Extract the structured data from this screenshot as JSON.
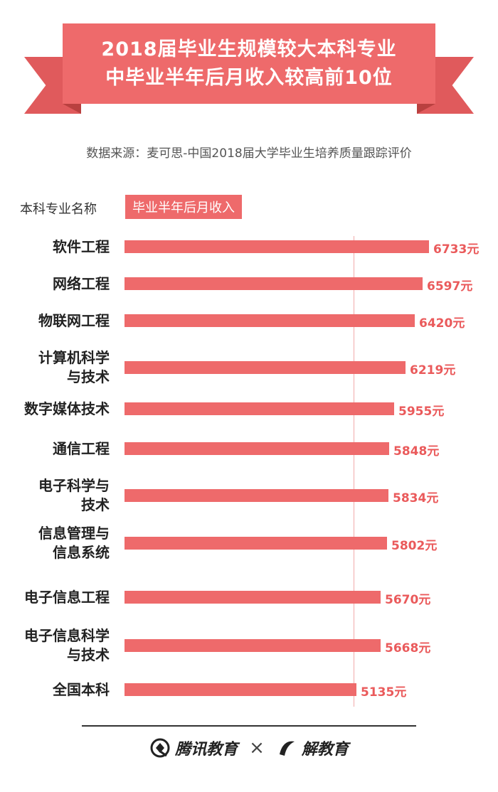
{
  "title": {
    "line1": "2018届毕业生规模较大本科专业",
    "line2": "中毕业半年后月收入较高前10位"
  },
  "source": "数据来源：麦可思-中国2018届大学毕业生培养质量跟踪评价",
  "header": {
    "major_col": "本科专业名称",
    "income_col": "毕业半年后月收入"
  },
  "footer": {
    "brand1": "腾讯教育",
    "separator": "×",
    "brand2": "解教育"
  },
  "colors": {
    "bar": "#ee6a6b",
    "value": "#ea5a5b",
    "ribbon": "#ee6a6b"
  },
  "chart_data": {
    "type": "bar",
    "orientation": "horizontal",
    "unit": "元",
    "categories": [
      [
        "软件工程"
      ],
      [
        "网络工程"
      ],
      [
        "物联网工程"
      ],
      [
        "计算机科学",
        "与技术"
      ],
      [
        "数字媒体技术"
      ],
      [
        "通信工程"
      ],
      [
        "电子科学与",
        "技术"
      ],
      [
        "信息管理与",
        "信息系统"
      ],
      [
        "电子信息工程"
      ],
      [
        "电子信息科学",
        "与技术"
      ],
      [
        "全国本科"
      ]
    ],
    "values": [
      6733,
      6597,
      6420,
      6219,
      5955,
      5848,
      5834,
      5802,
      5670,
      5668,
      5135
    ],
    "reference_value": 5135
  }
}
